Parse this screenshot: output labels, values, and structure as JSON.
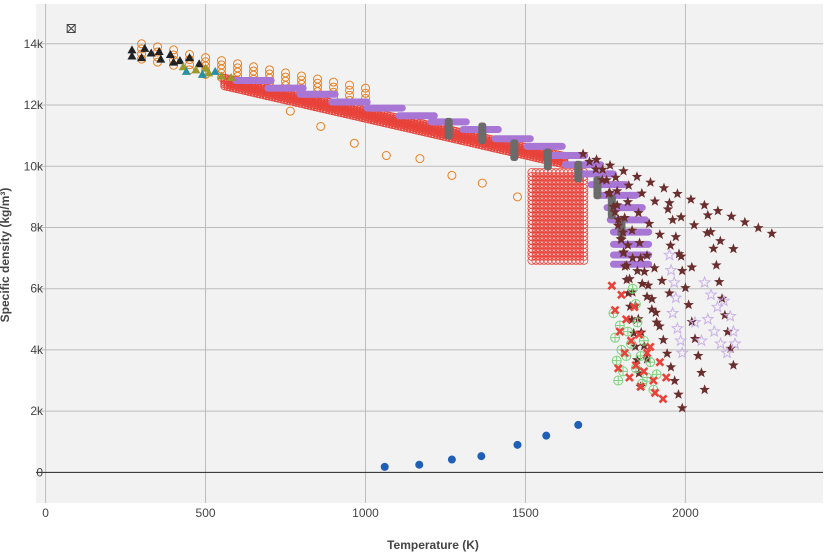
{
  "chart_data": {
    "type": "scatter",
    "title": "",
    "xlabel": "Temperature (K)",
    "ylabel": "Specific density (kg/m³)",
    "xlim": [
      -30,
      2430
    ],
    "ylim": [
      -1000,
      15300
    ],
    "grid": true,
    "x_ticks": [
      0,
      500,
      1000,
      1500,
      2000
    ],
    "x_tick_labels": [
      "0",
      "500",
      "1000",
      "1500",
      "2000"
    ],
    "y_ticks": [
      0,
      2000,
      4000,
      6000,
      8000,
      10000,
      12000,
      14000
    ],
    "y_tick_labels": [
      "0",
      "2k",
      "4k",
      "6k",
      "8k",
      "10k",
      "12k",
      "14k"
    ],
    "colors": {
      "background": "#f2f2f2",
      "grid": "#bcbcbc",
      "zero_line": "#222222",
      "orange": "#e8801e",
      "red": "#e8423a",
      "purple": "#a877d6",
      "gray": "#6b6b6b",
      "star": "#6b2e2e",
      "green": "#7fd27f",
      "lilac": "#c9b1e6",
      "blue": "#1f5fb5",
      "black": "#222222",
      "olive": "#9a9a2a",
      "teal": "#2a8fa0"
    },
    "series": [
      {
        "marker": "circle-filled",
        "color": "blue",
        "points": [
          [
            1060,
            180
          ],
          [
            1168,
            250
          ],
          [
            1270,
            420
          ],
          [
            1362,
            530
          ],
          [
            1475,
            900
          ],
          [
            1565,
            1200
          ],
          [
            1665,
            1550
          ]
        ]
      },
      {
        "marker": "circle-open",
        "color": "orange",
        "points": [
          [
            765,
            11800
          ],
          [
            860,
            11300
          ],
          [
            965,
            10750
          ],
          [
            1065,
            10350
          ],
          [
            1170,
            10250
          ],
          [
            1270,
            9700
          ],
          [
            1365,
            9450
          ],
          [
            1475,
            9000
          ]
        ]
      },
      {
        "marker": "circle-open",
        "color": "orange",
        "columns": [
          {
            "x": 300,
            "y_top": 14000,
            "y_bottom": 13500
          },
          {
            "x": 350,
            "y_top": 13900,
            "y_bottom": 13400
          },
          {
            "x": 400,
            "y_top": 13800,
            "y_bottom": 13300
          },
          {
            "x": 450,
            "y_top": 13650,
            "y_bottom": 13150
          },
          {
            "x": 500,
            "y_top": 13550,
            "y_bottom": 13000
          },
          {
            "x": 550,
            "y_top": 13450,
            "y_bottom": 12900
          },
          {
            "x": 600,
            "y_top": 13350,
            "y_bottom": 12800
          },
          {
            "x": 650,
            "y_top": 13250,
            "y_bottom": 12700
          },
          {
            "x": 700,
            "y_top": 13150,
            "y_bottom": 12600
          },
          {
            "x": 750,
            "y_top": 13050,
            "y_bottom": 12500
          },
          {
            "x": 800,
            "y_top": 12950,
            "y_bottom": 12400
          },
          {
            "x": 850,
            "y_top": 12850,
            "y_bottom": 12300
          },
          {
            "x": 900,
            "y_top": 12750,
            "y_bottom": 12250
          },
          {
            "x": 950,
            "y_top": 12650,
            "y_bottom": 12150
          },
          {
            "x": 1000,
            "y_top": 12550,
            "y_bottom": 12050
          }
        ]
      },
      {
        "marker": "circle-open",
        "color": "red",
        "band": {
          "x_start": 560,
          "x_end": 1620,
          "y_start": 12750,
          "y_end": 10200,
          "thickness": 250
        }
      },
      {
        "marker": "circle-open",
        "color": "red",
        "block": {
          "x_min": 1520,
          "x_max": 1690,
          "y_min": 6850,
          "y_max": 9800
        }
      },
      {
        "marker": "bar-marker",
        "color": "purple",
        "bars": [
          {
            "x": 650,
            "y": 12800
          },
          {
            "x": 750,
            "y": 12550
          },
          {
            "x": 850,
            "y": 12350
          },
          {
            "x": 950,
            "y": 12100
          },
          {
            "x": 1060,
            "y": 11900
          },
          {
            "x": 1160,
            "y": 11650
          },
          {
            "x": 1260,
            "y": 11450
          },
          {
            "x": 1360,
            "y": 11200
          },
          {
            "x": 1460,
            "y": 10900
          },
          {
            "x": 1560,
            "y": 10650
          },
          {
            "x": 1630,
            "y": 10350
          },
          {
            "x": 1680,
            "y": 10050
          },
          {
            "x": 1720,
            "y": 9750
          },
          {
            "x": 1760,
            "y": 9400
          },
          {
            "x": 1790,
            "y": 9050
          },
          {
            "x": 1810,
            "y": 8650
          },
          {
            "x": 1820,
            "y": 8250
          },
          {
            "x": 1830,
            "y": 7850
          },
          {
            "x": 1830,
            "y": 7450
          },
          {
            "x": 1830,
            "y": 7100
          },
          {
            "x": 1830,
            "y": 6800
          }
        ],
        "half_width": 55
      },
      {
        "marker": "barrel",
        "color": "gray",
        "points": [
          [
            1260,
            11350
          ],
          [
            1260,
            11100
          ],
          [
            1365,
            11200
          ],
          [
            1365,
            10950
          ],
          [
            1465,
            10650
          ],
          [
            1465,
            10400
          ],
          [
            1570,
            10350
          ],
          [
            1570,
            10100
          ],
          [
            1665,
            9950
          ],
          [
            1665,
            9700
          ],
          [
            1725,
            9450
          ],
          [
            1725,
            9150
          ],
          [
            1770,
            8850
          ],
          [
            1770,
            8500
          ],
          [
            1800,
            8150
          ],
          [
            1800,
            7900
          ]
        ]
      },
      {
        "marker": "star",
        "color": "star",
        "lines": [
          {
            "from": [
              1680,
              10400
            ],
            "to": [
              2270,
              7800
            ],
            "n": 15
          },
          {
            "from": [
              1700,
              10150
            ],
            "to": [
              2150,
              7300
            ],
            "n": 12
          },
          {
            "from": [
              1720,
              9900
            ],
            "to": [
              2020,
              6700
            ],
            "n": 10
          },
          {
            "from": [
              1740,
              9550
            ],
            "to": [
              1950,
              5850
            ],
            "n": 10
          },
          {
            "from": [
              1760,
              9100
            ],
            "to": [
              1910,
              4900
            ],
            "n": 11
          },
          {
            "from": [
              1780,
              8500
            ],
            "to": [
              1880,
              3700
            ],
            "n": 12
          },
          {
            "from": [
              1800,
              7600
            ],
            "to": [
              1860,
              2800
            ],
            "n": 12
          },
          {
            "from": [
              1860,
              7000
            ],
            "to": [
              1990,
              2100
            ],
            "n": 12
          },
          {
            "from": [
              1950,
              8800
            ],
            "to": [
              2060,
              2700
            ],
            "n": 12
          },
          {
            "from": [
              2070,
              8400
            ],
            "to": [
              2150,
              3500
            ],
            "n": 10
          }
        ]
      },
      {
        "marker": "circle-cross",
        "color": "green",
        "points": [
          [
            1775,
            5200
          ],
          [
            1795,
            4800
          ],
          [
            1780,
            4400
          ],
          [
            1800,
            4000
          ],
          [
            1785,
            3650
          ],
          [
            1805,
            3300
          ],
          [
            1790,
            3000
          ],
          [
            1820,
            4600
          ],
          [
            1830,
            4200
          ],
          [
            1815,
            3800
          ],
          [
            1845,
            3400
          ],
          [
            1860,
            3800
          ],
          [
            1870,
            4300
          ],
          [
            1850,
            4900
          ],
          [
            1880,
            3100
          ],
          [
            1890,
            3600
          ],
          [
            1835,
            6000
          ],
          [
            1845,
            5500
          ],
          [
            1900,
            2700
          ],
          [
            1910,
            3200
          ],
          [
            1865,
            2900
          ]
        ]
      },
      {
        "marker": "x-bold",
        "color": "red",
        "points": [
          [
            1770,
            6100
          ],
          [
            1800,
            5800
          ],
          [
            1780,
            5300
          ],
          [
            1815,
            5000
          ],
          [
            1795,
            4600
          ],
          [
            1830,
            4300
          ],
          [
            1810,
            3900
          ],
          [
            1845,
            3500
          ],
          [
            1825,
            3100
          ],
          [
            1860,
            2800
          ],
          [
            1870,
            3300
          ],
          [
            1880,
            3900
          ],
          [
            1855,
            4500
          ],
          [
            1840,
            5400
          ],
          [
            1890,
            4100
          ],
          [
            1900,
            3000
          ],
          [
            1920,
            3600
          ],
          [
            1905,
            2600
          ],
          [
            1930,
            2400
          ],
          [
            1940,
            3100
          ],
          [
            1790,
            3400
          ]
        ]
      },
      {
        "marker": "star-open",
        "color": "lilac",
        "points": [
          [
            1950,
            7100
          ],
          [
            1955,
            6600
          ],
          [
            1965,
            6200
          ],
          [
            1970,
            5700
          ],
          [
            1960,
            5200
          ],
          [
            1975,
            4700
          ],
          [
            1985,
            4300
          ],
          [
            2060,
            6200
          ],
          [
            2080,
            5800
          ],
          [
            2100,
            5400
          ],
          [
            2070,
            5000
          ],
          [
            2090,
            4600
          ],
          [
            2110,
            4200
          ],
          [
            2130,
            3900
          ],
          [
            2120,
            5600
          ],
          [
            2140,
            5100
          ],
          [
            2150,
            4600
          ],
          [
            2155,
            4200
          ],
          [
            2050,
            4300
          ],
          [
            2030,
            4900
          ],
          [
            1990,
            3900
          ]
        ]
      },
      {
        "marker": "triangle",
        "color": "black",
        "points": [
          [
            270,
            13600
          ],
          [
            300,
            13550
          ],
          [
            330,
            13700
          ],
          [
            360,
            13500
          ],
          [
            390,
            13650
          ],
          [
            420,
            13450
          ],
          [
            450,
            13550
          ],
          [
            480,
            13350
          ],
          [
            270,
            13800
          ],
          [
            310,
            13850
          ],
          [
            355,
            13750
          ],
          [
            400,
            13400
          ]
        ]
      },
      {
        "marker": "triangle",
        "color": "olive",
        "points": [
          [
            430,
            13250
          ],
          [
            470,
            13150
          ],
          [
            510,
            13050
          ],
          [
            550,
            12950
          ],
          [
            580,
            12900
          ],
          [
            500,
            13200
          ]
        ]
      },
      {
        "marker": "triangle",
        "color": "teal",
        "points": [
          [
            440,
            13100
          ],
          [
            490,
            13000
          ],
          [
            530,
            13100
          ]
        ]
      }
    ],
    "annotations": [
      {
        "marker": "boxed-x",
        "x": 80,
        "y": 14500
      }
    ]
  }
}
